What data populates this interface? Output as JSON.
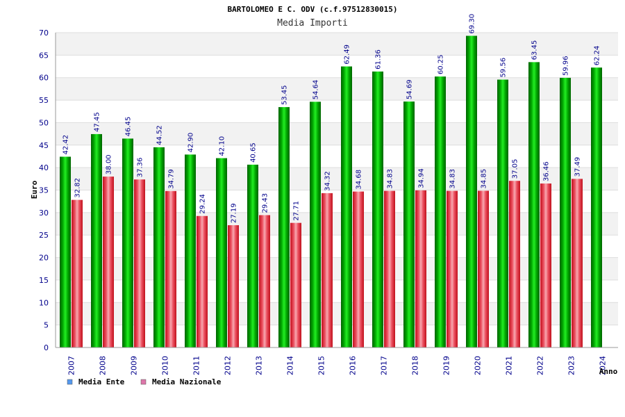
{
  "chart_data": {
    "type": "bar",
    "title": "BARTOLOMEO E C. ODV (c.f.97512830015)",
    "subtitle": "Media Importi",
    "ylabel": "Euro",
    "xlabel": "Anno",
    "ylim": [
      0,
      70
    ],
    "yticks": [
      0,
      5,
      10,
      15,
      20,
      25,
      30,
      35,
      40,
      45,
      50,
      55,
      60,
      65,
      70
    ],
    "grid": true,
    "legend_position": "bottom-left",
    "categories": [
      "2007",
      "2008",
      "2009",
      "2010",
      "2011",
      "2012",
      "2013",
      "2014",
      "2015",
      "2016",
      "2017",
      "2018",
      "2019",
      "2020",
      "2021",
      "2022",
      "2023",
      "2024"
    ],
    "series": [
      {
        "name": "Media Ente",
        "color": "#00b000",
        "legend_color": "#5599ee",
        "values": [
          42.42,
          47.45,
          46.45,
          44.52,
          42.9,
          42.1,
          40.65,
          53.45,
          54.64,
          62.49,
          61.36,
          54.69,
          60.25,
          69.3,
          59.56,
          63.45,
          59.96,
          62.24
        ],
        "labels": [
          "42.42",
          "47.45",
          "46.45",
          "44.52",
          "42.90",
          "42.10",
          "40.65",
          "53.45",
          "54.64",
          "62.49",
          "61.36",
          "54.69",
          "60.25",
          "69.30",
          "59.56",
          "63.45",
          "59.96",
          "62.24"
        ]
      },
      {
        "name": "Media Nazionale",
        "color": "#e83040",
        "legend_color": "#dd77aa",
        "values": [
          32.82,
          38.0,
          37.36,
          34.79,
          29.24,
          27.19,
          29.43,
          27.71,
          34.32,
          34.68,
          34.83,
          34.94,
          34.83,
          34.85,
          37.05,
          36.46,
          37.49,
          null
        ],
        "labels": [
          "32.82",
          "38.00",
          "37.36",
          "34.79",
          "29.24",
          "27.19",
          "29.43",
          "27.71",
          "34.32",
          "34.68",
          "34.83",
          "34.94",
          "34.83",
          "34.85",
          "37.05",
          "36.46",
          "37.49",
          ""
        ]
      }
    ]
  }
}
